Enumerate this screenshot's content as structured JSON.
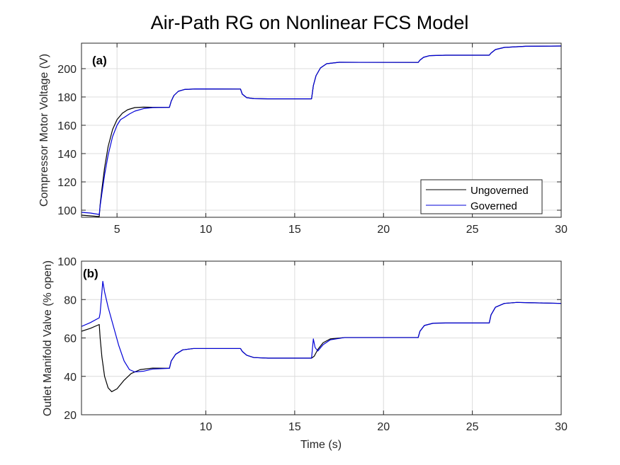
{
  "figure": {
    "title": "Air-Path RG on Nonlinear FCS Model"
  },
  "chart_data": [
    {
      "type": "line",
      "panel_label": "(a)",
      "xlabel": "",
      "ylabel": "Compressor Motor Voltage (V)",
      "xlim": [
        3,
        30
      ],
      "ylim": [
        95,
        218
      ],
      "xticks": [
        5,
        10,
        15,
        20,
        25,
        30
      ],
      "yticks": [
        100,
        120,
        140,
        160,
        180,
        200
      ],
      "grid": true,
      "legend_position": "lower-right",
      "series": [
        {
          "name": "Ungoverned",
          "color": "#000000",
          "points": [
            [
              3,
              96.5
            ],
            [
              3.5,
              96
            ],
            [
              4,
              95.5
            ],
            [
              4.05,
              104
            ],
            [
              4.15,
              115
            ],
            [
              4.3,
              130
            ],
            [
              4.5,
              145
            ],
            [
              4.75,
              157
            ],
            [
              5,
              164
            ],
            [
              5.3,
              168.5
            ],
            [
              5.6,
              171
            ],
            [
              6,
              172.5
            ],
            [
              6.5,
              172.8
            ],
            [
              7,
              172.7
            ],
            [
              7.95,
              172.7
            ],
            [
              8.05,
              177
            ],
            [
              8.2,
              181
            ],
            [
              8.45,
              184
            ],
            [
              8.8,
              185.3
            ],
            [
              9.5,
              185.7
            ],
            [
              11.95,
              185.6
            ],
            [
              12.05,
              182
            ],
            [
              12.3,
              179.5
            ],
            [
              12.7,
              178.8
            ],
            [
              13.5,
              178.7
            ],
            [
              15.95,
              178.7
            ],
            [
              16.05,
              188
            ],
            [
              16.2,
              195
            ],
            [
              16.45,
              200.5
            ],
            [
              16.8,
              203.5
            ],
            [
              17.5,
              204.5
            ],
            [
              21.95,
              204.4
            ],
            [
              22.05,
              206
            ],
            [
              22.25,
              208
            ],
            [
              22.6,
              209.2
            ],
            [
              23.5,
              209.5
            ],
            [
              25.95,
              209.5
            ],
            [
              26.05,
              211
            ],
            [
              26.3,
              213.5
            ],
            [
              26.8,
              215
            ],
            [
              28,
              215.8
            ],
            [
              30,
              216
            ]
          ]
        },
        {
          "name": "Governed",
          "color": "#0000d8",
          "points": [
            [
              3,
              98.5
            ],
            [
              3.5,
              98
            ],
            [
              4,
              97
            ],
            [
              4.05,
              103
            ],
            [
              4.15,
              112
            ],
            [
              4.3,
              125
            ],
            [
              4.5,
              139
            ],
            [
              4.75,
              152
            ],
            [
              5,
              160
            ],
            [
              5.2,
              164
            ],
            [
              5.4,
              165.5
            ],
            [
              5.7,
              168
            ],
            [
              6,
              170
            ],
            [
              6.5,
              171.8
            ],
            [
              7,
              172.5
            ],
            [
              7.95,
              172.7
            ],
            [
              8.05,
              177
            ],
            [
              8.2,
              181
            ],
            [
              8.45,
              184
            ],
            [
              8.8,
              185.3
            ],
            [
              9.5,
              185.7
            ],
            [
              11.95,
              185.6
            ],
            [
              12.05,
              182
            ],
            [
              12.3,
              179.5
            ],
            [
              12.7,
              178.8
            ],
            [
              13.5,
              178.7
            ],
            [
              15.95,
              178.7
            ],
            [
              16.05,
              188
            ],
            [
              16.2,
              195
            ],
            [
              16.45,
              200.5
            ],
            [
              16.8,
              203.5
            ],
            [
              17.5,
              204.5
            ],
            [
              21.95,
              204.4
            ],
            [
              22.05,
              206
            ],
            [
              22.25,
              208
            ],
            [
              22.6,
              209.2
            ],
            [
              23.5,
              209.5
            ],
            [
              25.95,
              209.5
            ],
            [
              26.05,
              211
            ],
            [
              26.3,
              213.5
            ],
            [
              26.8,
              215
            ],
            [
              28,
              215.8
            ],
            [
              30,
              216
            ]
          ]
        }
      ]
    },
    {
      "type": "line",
      "panel_label": "(b)",
      "xlabel": "Time (s)",
      "ylabel": "Outlet Manifold Valve (% open)",
      "xlim": [
        3,
        30
      ],
      "ylim": [
        20,
        100
      ],
      "xticks": [
        10,
        15,
        20,
        25,
        30
      ],
      "yticks": [
        20,
        40,
        60,
        80,
        100
      ],
      "grid": true,
      "series": [
        {
          "name": "Ungoverned",
          "color": "#000000",
          "points": [
            [
              3,
              63.5
            ],
            [
              3.5,
              65
            ],
            [
              4,
              67
            ],
            [
              4.05,
              60
            ],
            [
              4.15,
              50
            ],
            [
              4.3,
              40
            ],
            [
              4.5,
              34
            ],
            [
              4.7,
              32
            ],
            [
              5,
              33.5
            ],
            [
              5.4,
              38
            ],
            [
              5.8,
              41.5
            ],
            [
              6.3,
              43.5
            ],
            [
              7,
              44.3
            ],
            [
              7.95,
              44.2
            ],
            [
              8.05,
              48
            ],
            [
              8.3,
              51.5
            ],
            [
              8.7,
              53.8
            ],
            [
              9.3,
              54.5
            ],
            [
              11.95,
              54.5
            ],
            [
              12.05,
              53
            ],
            [
              12.3,
              51
            ],
            [
              12.7,
              49.8
            ],
            [
              13.5,
              49.5
            ],
            [
              15.95,
              49.5
            ],
            [
              16.1,
              50.5
            ],
            [
              16.3,
              54
            ],
            [
              16.6,
              57.5
            ],
            [
              17,
              59.5
            ],
            [
              17.8,
              60.2
            ],
            [
              21.95,
              60.2
            ],
            [
              22.05,
              63.5
            ],
            [
              22.3,
              66.5
            ],
            [
              22.8,
              67.7
            ],
            [
              23.5,
              67.8
            ],
            [
              25.95,
              67.8
            ],
            [
              26.05,
              72
            ],
            [
              26.3,
              76
            ],
            [
              26.8,
              78
            ],
            [
              27.5,
              78.5
            ],
            [
              28.5,
              78.3
            ],
            [
              30,
              78
            ]
          ]
        },
        {
          "name": "Governed",
          "color": "#0000d8",
          "points": [
            [
              3,
              66
            ],
            [
              3.5,
              68
            ],
            [
              4,
              70.5
            ],
            [
              4.05,
              73
            ],
            [
              4.15,
              84
            ],
            [
              4.2,
              89.5
            ],
            [
              4.3,
              84
            ],
            [
              4.5,
              76
            ],
            [
              4.8,
              66
            ],
            [
              5.1,
              56
            ],
            [
              5.4,
              48
            ],
            [
              5.7,
              43.5
            ],
            [
              6,
              42.3
            ],
            [
              6.5,
              42.7
            ],
            [
              7,
              43.8
            ],
            [
              7.95,
              44.2
            ],
            [
              8.05,
              48
            ],
            [
              8.3,
              51.5
            ],
            [
              8.7,
              53.8
            ],
            [
              9.3,
              54.5
            ],
            [
              11.95,
              54.5
            ],
            [
              12.05,
              53
            ],
            [
              12.3,
              51
            ],
            [
              12.7,
              49.8
            ],
            [
              13.5,
              49.5
            ],
            [
              15.95,
              49.5
            ],
            [
              16.05,
              59.5
            ],
            [
              16.15,
              55
            ],
            [
              16.3,
              53.2
            ],
            [
              16.6,
              56.5
            ],
            [
              17,
              59
            ],
            [
              17.8,
              60.2
            ],
            [
              21.95,
              60.2
            ],
            [
              22.05,
              63.5
            ],
            [
              22.3,
              66.5
            ],
            [
              22.8,
              67.7
            ],
            [
              23.5,
              67.8
            ],
            [
              25.95,
              67.8
            ],
            [
              26.05,
              72
            ],
            [
              26.3,
              76
            ],
            [
              26.8,
              78
            ],
            [
              27.5,
              78.5
            ],
            [
              28.5,
              78.3
            ],
            [
              30,
              78
            ]
          ]
        }
      ]
    }
  ]
}
